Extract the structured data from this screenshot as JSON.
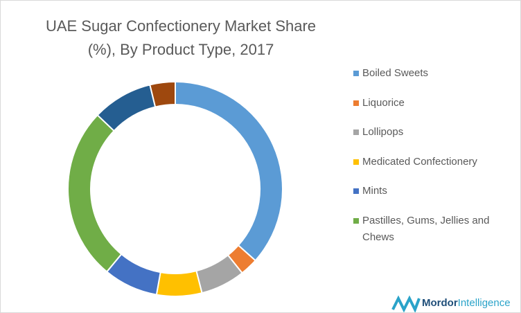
{
  "chart_data": {
    "type": "donut",
    "title": "UAE Sugar Confectionery Market Share (%), By Product Type, 2017",
    "categories": [
      "Boiled Sweets",
      "Liquorice",
      "Lollipops",
      "Medicated Confectionery",
      "Mints",
      "Pastilles, Gums, Jellies and Chews",
      null,
      null
    ],
    "values": [
      36.6,
      2.7,
      6.7,
      6.8,
      8.2,
      26.1,
      9.1,
      3.8
    ],
    "colors": [
      "#5b9bd5",
      "#ed7d31",
      "#a5a5a5",
      "#ffc000",
      "#4472c4",
      "#70ad47",
      "#255e91",
      "#9e480e"
    ],
    "legend": "right"
  },
  "logo": {
    "part1": "Mordor",
    "part2": "Intelligence"
  }
}
